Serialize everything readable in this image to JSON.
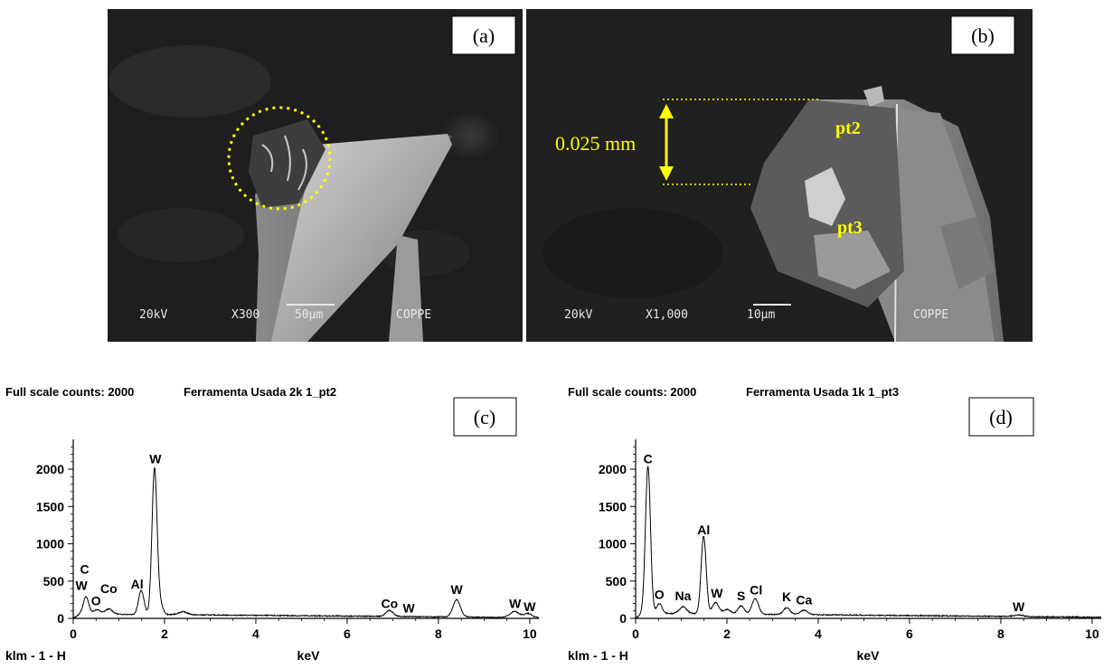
{
  "sem_a": {
    "label": "(a)",
    "bar_voltage": "20kV",
    "bar_mag": "X300",
    "bar_scale": "50µm",
    "bar_lab": "COPPE"
  },
  "sem_b": {
    "label": "(b)",
    "bar_voltage": "20kV",
    "bar_mag": "X1,000",
    "bar_scale": "10µm",
    "bar_lab": "COPPE",
    "dimension": "0.025 mm",
    "point_labels": [
      "pt2",
      "pt3"
    ]
  },
  "chart_data": [
    {
      "type": "line",
      "panel_label": "(c)",
      "header_left": "Full scale counts: 2000",
      "header_right": "Ferramenta Usada 2k 1_pt2",
      "xlabel": "keV",
      "bottom_left": "klm - 1 - H",
      "xlim": [
        0,
        10.2
      ],
      "ylim": [
        0,
        2400
      ],
      "xticks": [
        0,
        2,
        4,
        6,
        8,
        10
      ],
      "yticks": [
        0,
        500,
        1000,
        1500,
        2000
      ],
      "peaks": [
        {
          "x": 0.28,
          "h": 230,
          "w": 0.06
        },
        {
          "x": 0.52,
          "h": 60,
          "w": 0.07
        },
        {
          "x": 0.78,
          "h": 70,
          "w": 0.08
        },
        {
          "x": 1.49,
          "h": 320,
          "w": 0.06
        },
        {
          "x": 1.78,
          "h": 1950,
          "w": 0.055
        },
        {
          "x": 1.9,
          "h": 150,
          "w": 0.06
        },
        {
          "x": 2.4,
          "h": 40,
          "w": 0.1
        },
        {
          "x": 6.93,
          "h": 80,
          "w": 0.08
        },
        {
          "x": 8.4,
          "h": 230,
          "w": 0.08
        },
        {
          "x": 9.67,
          "h": 80,
          "w": 0.1
        },
        {
          "x": 9.96,
          "h": 55,
          "w": 0.08
        }
      ],
      "background": {
        "start": 60,
        "end": 10
      },
      "peak_labels": [
        {
          "text": "W",
          "x": 1.8,
          "y": 2080
        },
        {
          "text": "C",
          "x": 0.25,
          "y": 600
        },
        {
          "text": "W",
          "x": 0.18,
          "y": 380
        },
        {
          "text": "O",
          "x": 0.5,
          "y": 175
        },
        {
          "text": "Co",
          "x": 0.78,
          "y": 340
        },
        {
          "text": "Al",
          "x": 1.4,
          "y": 400
        },
        {
          "text": "Co",
          "x": 6.93,
          "y": 140
        },
        {
          "text": "W",
          "x": 7.35,
          "y": 80
        },
        {
          "text": "W",
          "x": 8.4,
          "y": 330
        },
        {
          "text": "W",
          "x": 9.68,
          "y": 140
        },
        {
          "text": "W",
          "x": 10.0,
          "y": 100
        }
      ]
    },
    {
      "type": "line",
      "panel_label": "(d)",
      "header_left": "Full scale counts: 2000",
      "header_right": "Ferramenta Usada 1k 1_pt3",
      "xlabel": "keV",
      "bottom_left": "klm - 1 - H",
      "xlim": [
        0,
        10.2
      ],
      "ylim": [
        0,
        2400
      ],
      "xticks": [
        0,
        2,
        4,
        6,
        8,
        10
      ],
      "yticks": [
        0,
        500,
        1000,
        1500,
        2000
      ],
      "peaks": [
        {
          "x": 0.27,
          "h": 1970,
          "w": 0.055
        },
        {
          "x": 0.52,
          "h": 130,
          "w": 0.06
        },
        {
          "x": 1.04,
          "h": 90,
          "w": 0.08
        },
        {
          "x": 1.49,
          "h": 1040,
          "w": 0.055
        },
        {
          "x": 1.75,
          "h": 150,
          "w": 0.07
        },
        {
          "x": 2.0,
          "h": 60,
          "w": 0.08
        },
        {
          "x": 2.31,
          "h": 110,
          "w": 0.07
        },
        {
          "x": 2.62,
          "h": 210,
          "w": 0.07
        },
        {
          "x": 3.31,
          "h": 90,
          "w": 0.07
        },
        {
          "x": 3.69,
          "h": 60,
          "w": 0.08
        },
        {
          "x": 8.39,
          "h": 20,
          "w": 0.1
        }
      ],
      "background": {
        "start": 70,
        "end": 15
      },
      "peak_labels": [
        {
          "text": "C",
          "x": 0.27,
          "y": 2080
        },
        {
          "text": "Al",
          "x": 1.49,
          "y": 1130
        },
        {
          "text": "O",
          "x": 0.52,
          "y": 260
        },
        {
          "text": "Na",
          "x": 1.04,
          "y": 240
        },
        {
          "text": "W",
          "x": 1.78,
          "y": 280
        },
        {
          "text": "S",
          "x": 2.31,
          "y": 240
        },
        {
          "text": "Cl",
          "x": 2.64,
          "y": 320
        },
        {
          "text": "K",
          "x": 3.31,
          "y": 230
        },
        {
          "text": "Ca",
          "x": 3.69,
          "y": 190
        },
        {
          "text": "W",
          "x": 8.39,
          "y": 100
        }
      ]
    }
  ]
}
